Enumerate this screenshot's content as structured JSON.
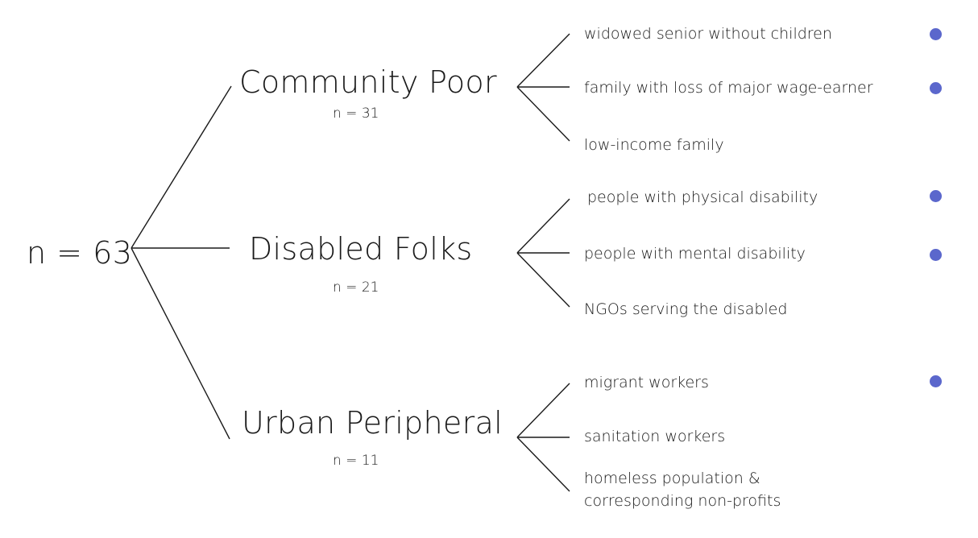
{
  "root": {
    "label": "n = 63"
  },
  "groups": [
    {
      "name": "Community Poor",
      "count": "n = 31"
    },
    {
      "name": "Disabled Folks",
      "count": "n = 21"
    },
    {
      "name": "Urban Peripheral",
      "count": "n = 11"
    }
  ],
  "leaves": [
    {
      "label": "widowed senior without children",
      "marked": true
    },
    {
      "label": "family with loss of major wage-earner",
      "marked": true
    },
    {
      "label": "low-income family",
      "marked": false
    },
    {
      "label": "people with physical disability",
      "marked": true
    },
    {
      "label": "people with mental disability",
      "marked": true
    },
    {
      "label": "NGOs serving the disabled",
      "marked": false
    },
    {
      "label": "migrant  workers",
      "marked": true
    },
    {
      "label": "sanitation workers",
      "marked": false
    },
    {
      "label": "homeless population &",
      "marked": false
    },
    {
      "label": "corresponding non-profits",
      "marked": false
    }
  ],
  "colors": {
    "marker": "#5b67cc",
    "line": "#1a1a1a"
  }
}
